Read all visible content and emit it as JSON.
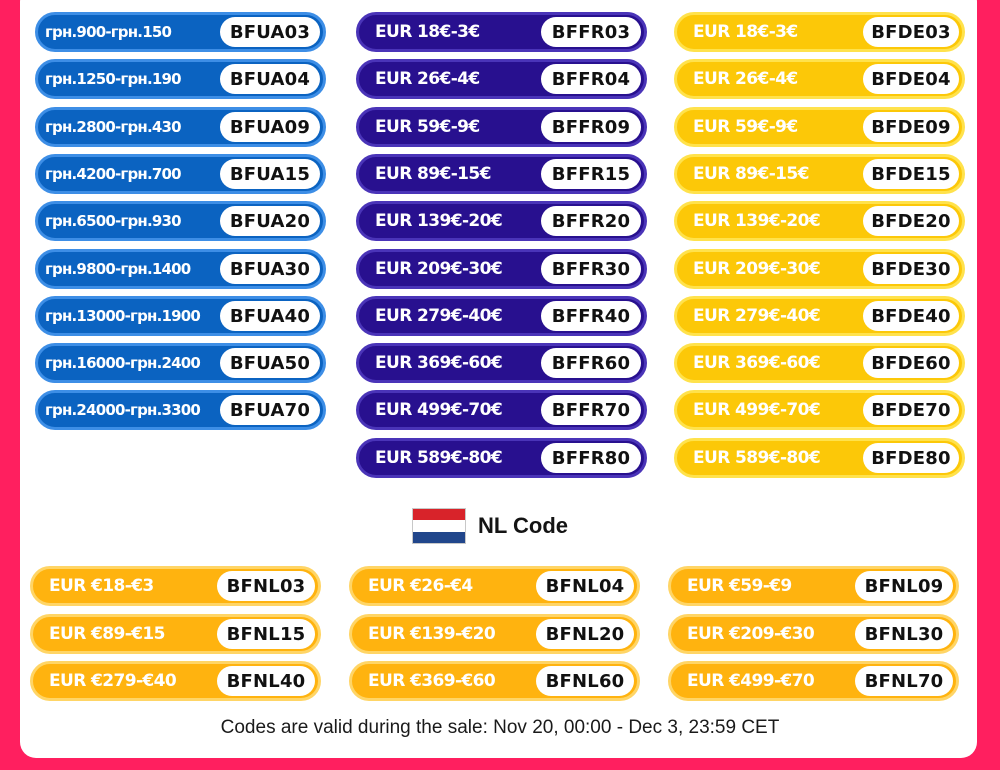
{
  "ua_codes": [
    {
      "price": "грн.900-грн.150",
      "code": "BFUA03"
    },
    {
      "price": "грн.1250-грн.190",
      "code": "BFUA04"
    },
    {
      "price": "грн.2800-грн.430",
      "code": "BFUA09"
    },
    {
      "price": "грн.4200-грн.700",
      "code": "BFUA15"
    },
    {
      "price": "грн.6500-грн.930",
      "code": "BFUA20"
    },
    {
      "price": "грн.9800-грн.1400",
      "code": "BFUA30"
    },
    {
      "price": "грн.13000-грн.1900",
      "code": "BFUA40"
    },
    {
      "price": "грн.16000-грн.2400",
      "code": "BFUA50"
    },
    {
      "price": "грн.24000-грн.3300",
      "code": "BFUA70"
    }
  ],
  "fr_codes": [
    {
      "price": "EUR 18€-3€",
      "code": "BFFR03"
    },
    {
      "price": "EUR 26€-4€",
      "code": "BFFR04"
    },
    {
      "price": "EUR 59€-9€",
      "code": "BFFR09"
    },
    {
      "price": "EUR 89€-15€",
      "code": "BFFR15"
    },
    {
      "price": "EUR 139€-20€",
      "code": "BFFR20"
    },
    {
      "price": "EUR 209€-30€",
      "code": "BFFR30"
    },
    {
      "price": "EUR 279€-40€",
      "code": "BFFR40"
    },
    {
      "price": "EUR 369€-60€",
      "code": "BFFR60"
    },
    {
      "price": "EUR 499€-70€",
      "code": "BFFR70"
    },
    {
      "price": "EUR 589€-80€",
      "code": "BFFR80"
    }
  ],
  "de_codes": [
    {
      "price": "EUR 18€-3€",
      "code": "BFDE03"
    },
    {
      "price": "EUR 26€-4€",
      "code": "BFDE04"
    },
    {
      "price": "EUR 59€-9€",
      "code": "BFDE09"
    },
    {
      "price": "EUR 89€-15€",
      "code": "BFDE15"
    },
    {
      "price": "EUR 139€-20€",
      "code": "BFDE20"
    },
    {
      "price": "EUR 209€-30€",
      "code": "BFDE30"
    },
    {
      "price": "EUR 279€-40€",
      "code": "BFDE40"
    },
    {
      "price": "EUR 369€-60€",
      "code": "BFDE60"
    },
    {
      "price": "EUR 499€-70€",
      "code": "BFDE70"
    },
    {
      "price": "EUR 589€-80€",
      "code": "BFDE80"
    }
  ],
  "nl_section": {
    "title": "NL Code",
    "flag_icon": "netherlands-flag-icon"
  },
  "nl_codes": [
    {
      "price": "EUR €18-€3",
      "code": "BFNL03"
    },
    {
      "price": "EUR €26-€4",
      "code": "BFNL04"
    },
    {
      "price": "EUR €59-€9",
      "code": "BFNL09"
    },
    {
      "price": "EUR €89-€15",
      "code": "BFNL15"
    },
    {
      "price": "EUR €139-€20",
      "code": "BFNL20"
    },
    {
      "price": "EUR €209-€30",
      "code": "BFNL30"
    },
    {
      "price": "EUR €279-€40",
      "code": "BFNL40"
    },
    {
      "price": "EUR €369-€60",
      "code": "BFNL60"
    },
    {
      "price": "EUR €499-€70",
      "code": "BFNL70"
    }
  ],
  "footnote": "Codes are valid during the sale: Nov 20, 00:00 - Dec 3, 23:59 CET",
  "colors": {
    "background": "#ff1f5f",
    "ua_pill": "#0b63c1",
    "fr_pill": "#28108f",
    "de_pill": "#fcc808",
    "nl_pill": "#ffb30f"
  }
}
